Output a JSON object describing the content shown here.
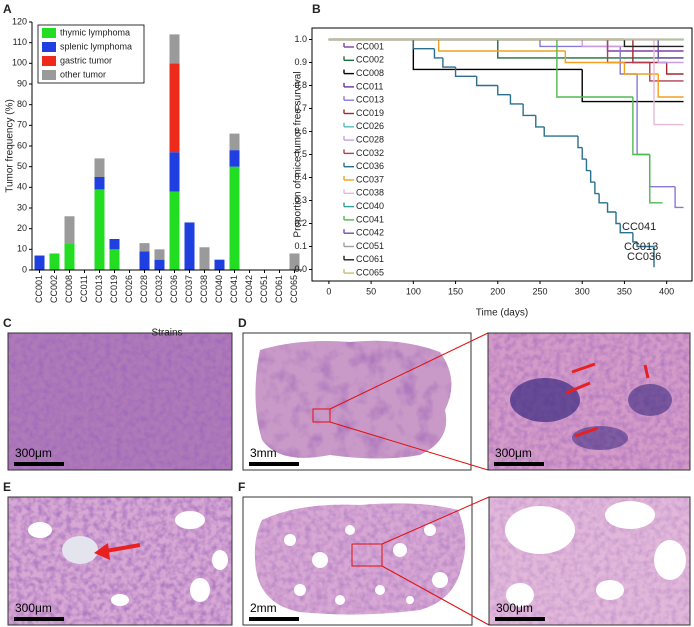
{
  "panel_labels": [
    "A",
    "B",
    "C",
    "D",
    "E",
    "F"
  ],
  "chart_data": [
    {
      "type": "bar",
      "stacked": true,
      "y_label": "Tumor frequency (%)",
      "x_label": "Strains",
      "legend": "upper left",
      "categories": [
        "CC001",
        "CC002",
        "CC008",
        "CC011",
        "CC013",
        "CC019",
        "CC026",
        "CC028",
        "CC032",
        "CC036",
        "CC037",
        "CC038",
        "CC040",
        "CC041",
        "CC042",
        "CC051",
        "CC061",
        "CC065"
      ],
      "series": [
        {
          "name": "thymic lymphoma",
          "color": "#22dd22",
          "values": [
            0,
            8,
            13,
            0,
            39,
            10,
            0,
            0,
            0,
            38,
            0,
            0,
            0,
            50,
            0,
            0,
            0,
            0
          ]
        },
        {
          "name": "splenic lymphoma",
          "color": "#1f3fe0",
          "values": [
            7,
            0,
            0,
            0,
            6,
            5,
            0,
            9,
            5,
            19,
            23,
            0,
            5,
            8,
            0,
            0,
            0,
            0
          ]
        },
        {
          "name": "gastric tumor",
          "color": "#ee2a1a",
          "values": [
            0,
            0,
            0,
            0,
            0,
            0,
            0,
            0,
            0,
            43,
            0,
            0,
            0,
            0,
            0,
            0,
            0,
            0
          ]
        },
        {
          "name": "other tumor",
          "color": "#9a9a9a",
          "values": [
            0,
            0,
            13,
            0,
            9,
            0,
            0,
            4,
            5,
            14,
            0,
            11,
            0,
            8,
            0,
            0,
            0,
            8
          ]
        }
      ],
      "ylim": [
        0,
        120
      ],
      "yticks": [
        0,
        10,
        20,
        30,
        40,
        50,
        60,
        70,
        80,
        90,
        100,
        110,
        120
      ]
    },
    {
      "type": "step",
      "y_label": "Proportion of mice tumor free survival",
      "x_label": "Time (days)",
      "legend": "left",
      "xlim": [
        -20,
        430
      ],
      "xticks": [
        0,
        50,
        100,
        150,
        200,
        250,
        300,
        350,
        400
      ],
      "ylim": [
        -0.05,
        1.05
      ],
      "yticks": [
        {
          "value": 0,
          "label": "0.0"
        },
        0.1,
        0.2,
        0.3,
        0.4,
        0.5,
        0.6,
        0.7,
        0.8,
        0.9,
        {
          "value": 1,
          "label": "1.0"
        }
      ],
      "series": [
        {
          "name": "CC001",
          "color": "#8040a0",
          "x": [
            0,
            330,
            420
          ],
          "values": [
            1,
            0.95,
            0.95
          ]
        },
        {
          "name": "CC002",
          "color": "#1e6e3c",
          "x": [
            0,
            200,
            420
          ],
          "values": [
            1,
            0.92,
            0.92
          ]
        },
        {
          "name": "CC008",
          "color": "#000000",
          "x": [
            0,
            100,
            300,
            420
          ],
          "values": [
            1,
            0.87,
            0.73,
            0.73
          ]
        },
        {
          "name": "CC011",
          "color": "#7030a0",
          "x": [
            0,
            420
          ],
          "values": [
            1,
            1
          ]
        },
        {
          "name": "CC013",
          "color": "#8878d8",
          "x": [
            0,
            250,
            345,
            365,
            380,
            410,
            420
          ],
          "values": [
            1,
            0.97,
            0.85,
            0.5,
            0.36,
            0.27,
            0.27
          ]
        },
        {
          "name": "CC019",
          "color": "#a02830",
          "x": [
            0,
            360,
            400,
            420
          ],
          "values": [
            1,
            0.9,
            0.85,
            0.85
          ]
        },
        {
          "name": "CC026",
          "color": "#50c0b8",
          "x": [
            0,
            420
          ],
          "values": [
            1,
            1
          ]
        },
        {
          "name": "CC028",
          "color": "#c8a0e0",
          "x": [
            0,
            300,
            390,
            420
          ],
          "values": [
            1,
            0.97,
            0.9,
            0.9
          ]
        },
        {
          "name": "CC032",
          "color": "#b04050",
          "x": [
            0,
            330,
            380,
            420
          ],
          "values": [
            1,
            0.9,
            0.82,
            0.82
          ]
        },
        {
          "name": "CC036",
          "color": "#2a6f8f",
          "x": [
            0,
            100,
            125,
            135,
            150,
            175,
            200,
            215,
            230,
            245,
            255,
            295,
            300,
            305,
            310,
            315,
            320,
            330,
            340,
            345,
            360,
            365,
            385
          ],
          "values": [
            1,
            0.96,
            0.92,
            0.88,
            0.84,
            0.8,
            0.76,
            0.72,
            0.67,
            0.62,
            0.58,
            0.53,
            0.48,
            0.43,
            0.38,
            0.33,
            0.29,
            0.25,
            0.2,
            0.16,
            0.12,
            0.1,
            0.01
          ]
        },
        {
          "name": "CC037",
          "color": "#f0a020",
          "x": [
            0,
            130,
            280,
            350,
            390,
            420
          ],
          "values": [
            1,
            0.95,
            0.9,
            0.85,
            0.75,
            0.75
          ]
        },
        {
          "name": "CC038",
          "color": "#e8b8d8",
          "x": [
            0,
            385,
            420
          ],
          "values": [
            1,
            0.63,
            0.63
          ]
        },
        {
          "name": "CC040",
          "color": "#30a0a0",
          "x": [
            0,
            420
          ],
          "values": [
            1,
            1
          ]
        },
        {
          "name": "CC041",
          "color": "#50b850",
          "x": [
            0,
            270,
            360,
            380,
            395
          ],
          "values": [
            1,
            0.75,
            0.5,
            0.29,
            0.29
          ]
        },
        {
          "name": "CC042",
          "color": "#7050b0",
          "x": [
            0,
            390,
            420
          ],
          "values": [
            1,
            0.92,
            0.92
          ]
        },
        {
          "name": "CC051",
          "color": "#a0a0a0",
          "x": [
            0,
            420
          ],
          "values": [
            1,
            1
          ]
        },
        {
          "name": "CC061",
          "color": "#202020",
          "x": [
            0,
            350,
            420
          ],
          "values": [
            1,
            0.97,
            0.97
          ]
        },
        {
          "name": "CC065",
          "color": "#c8c070",
          "x": [
            0,
            420
          ],
          "values": [
            1,
            1
          ]
        }
      ],
      "annotations": [
        "CC041",
        "CC013",
        "CC036"
      ]
    }
  ],
  "images": [
    {
      "scale_bar": "300μm"
    },
    {
      "scale_bar": "3mm"
    },
    {
      "scale_bar": "300μm"
    },
    {
      "scale_bar": "300μm"
    },
    {
      "scale_bar": "2mm"
    },
    {
      "scale_bar": "300μm"
    }
  ]
}
